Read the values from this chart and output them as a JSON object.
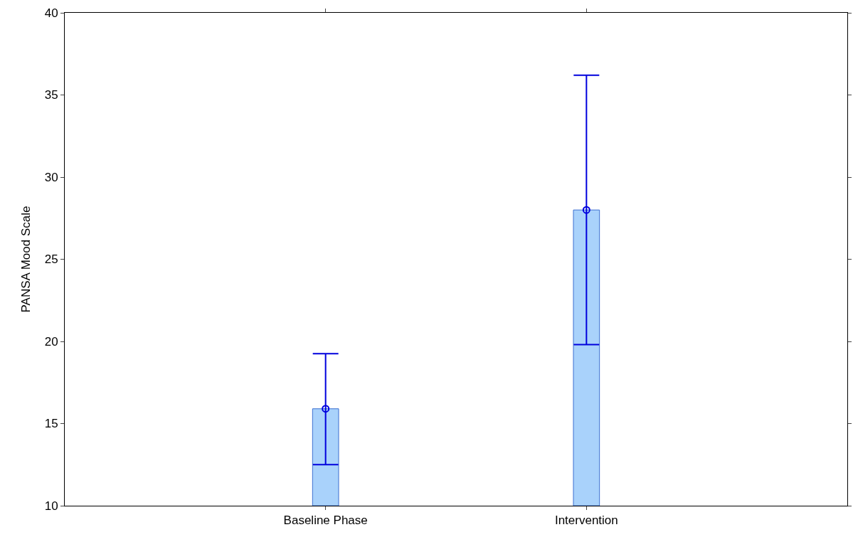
{
  "chart_data": {
    "type": "bar",
    "ylabel": "PANSA Mood Scale",
    "categories": [
      "Baseline Phase",
      "Intervention"
    ],
    "series": [
      {
        "color": "#a9d2fb",
        "values": [
          15.9,
          28.0
        ],
        "errors": [
          [
            12.5,
            19.25
          ],
          [
            19.8,
            36.2
          ]
        ]
      },
      {
        "type": "scatter",
        "color": "#0000dd",
        "x": [
          "Baseline Phase",
          "Intervention"
        ],
        "values": [
          15.9,
          28.0
        ],
        "marker": "circle"
      }
    ],
    "ylim": [
      10,
      40
    ],
    "yticks": [
      10,
      15,
      20,
      25,
      30,
      35,
      40
    ]
  }
}
